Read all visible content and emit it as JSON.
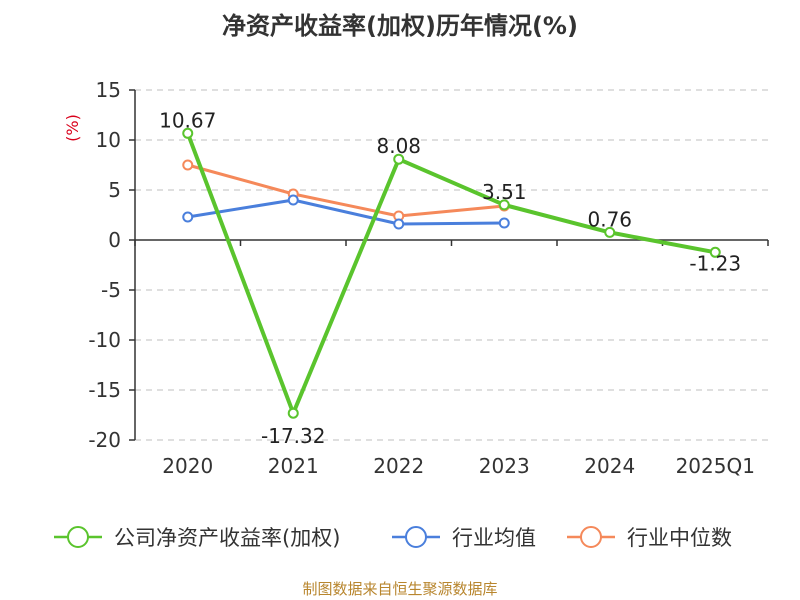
{
  "colors": {
    "company": "#5ac42d",
    "industry_avg": "#4a7fdc",
    "industry_median": "#f5895a",
    "ylabel": "#d9001b",
    "source": "#b8862e"
  },
  "source_text": "制图数据来自恒生聚源数据库",
  "chart_data": {
    "type": "line",
    "title": "净资产收益率(加权)历年情况(%)",
    "xlabel": "",
    "ylabel": "(%)",
    "categories": [
      "2020",
      "2021",
      "2022",
      "2023",
      "2024",
      "2025Q1"
    ],
    "ylim": [
      -20,
      15
    ],
    "yticks": [
      15,
      10,
      5,
      0,
      -5,
      -10,
      -15,
      -20
    ],
    "grid": true,
    "legend_position": "bottom",
    "series": [
      {
        "name": "公司净资产收益率(加权)",
        "color_key": "company",
        "values": [
          10.67,
          -17.32,
          8.08,
          3.51,
          0.76,
          -1.23
        ],
        "labels": [
          "10.67",
          "-17.32",
          "8.08",
          "3.51",
          "0.76",
          "-1.23"
        ]
      },
      {
        "name": "行业均值",
        "color_key": "industry_avg",
        "values": [
          2.3,
          4.0,
          1.6,
          1.7,
          null,
          null
        ]
      },
      {
        "name": "行业中位数",
        "color_key": "industry_median",
        "values": [
          7.5,
          4.6,
          2.4,
          3.4,
          null,
          null
        ]
      }
    ]
  }
}
